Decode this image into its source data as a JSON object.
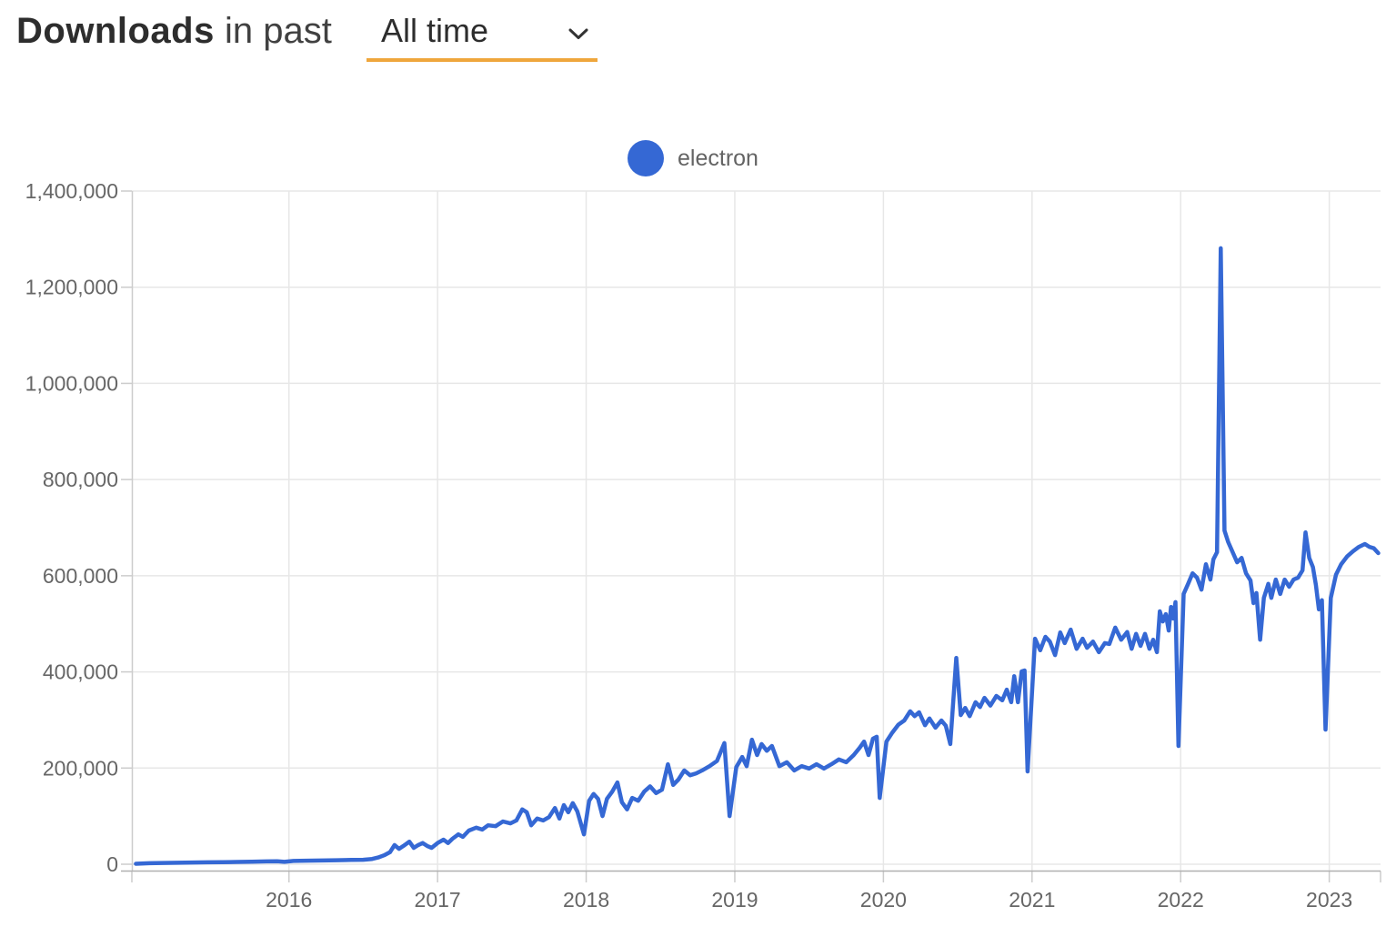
{
  "header": {
    "title_bold": "Downloads",
    "title_rest": "in past",
    "range_select": {
      "value": "All time",
      "icon": "chevron-down-icon"
    }
  },
  "legend": {
    "items": [
      {
        "label": "electron",
        "color": "#3568d4"
      }
    ]
  },
  "colors": {
    "accent_underline": "#efa63c",
    "series_blue": "#3568d4",
    "gridline": "#e7e7e7",
    "axis_line": "#b0b0b0",
    "tick": "#cccccc",
    "axis_label": "#666666"
  },
  "chart_data": {
    "type": "line",
    "title": "Downloads in past All time",
    "xlabel": "",
    "ylabel": "",
    "grid": true,
    "legend_position": "top-center",
    "x_axis": {
      "domain": [
        2014.943,
        2023.345
      ],
      "ticks": [
        2016,
        2017,
        2018,
        2019,
        2020,
        2021,
        2022,
        2023
      ],
      "tick_labels": [
        "2016",
        "2017",
        "2018",
        "2019",
        "2020",
        "2021",
        "2022",
        "2023"
      ]
    },
    "y_axis": {
      "domain": [
        0,
        1400000
      ],
      "ticks": [
        0,
        200000,
        400000,
        600000,
        800000,
        1000000,
        1200000,
        1400000
      ],
      "tick_labels": [
        "0",
        "200,000",
        "400,000",
        "600,000",
        "800,000",
        "1,000,000",
        "1,200,000",
        "1,400,000"
      ]
    },
    "series": [
      {
        "name": "electron",
        "color": "#3568d4",
        "points": [
          [
            2014.97,
            1000
          ],
          [
            2015.06,
            2000
          ],
          [
            2015.15,
            2600
          ],
          [
            2015.25,
            3100
          ],
          [
            2015.35,
            3500
          ],
          [
            2015.45,
            3900
          ],
          [
            2015.55,
            4300
          ],
          [
            2015.65,
            4800
          ],
          [
            2015.75,
            5200
          ],
          [
            2015.85,
            5800
          ],
          [
            2015.92,
            6200
          ],
          [
            2015.97,
            5000
          ],
          [
            2016.03,
            6800
          ],
          [
            2016.12,
            7300
          ],
          [
            2016.22,
            7800
          ],
          [
            2016.32,
            8300
          ],
          [
            2016.42,
            8800
          ],
          [
            2016.5,
            9300
          ],
          [
            2016.56,
            11000
          ],
          [
            2016.6,
            14000
          ],
          [
            2016.64,
            18500
          ],
          [
            2016.68,
            25000
          ],
          [
            2016.71,
            40000
          ],
          [
            2016.74,
            32000
          ],
          [
            2016.77,
            38000
          ],
          [
            2016.81,
            47000
          ],
          [
            2016.84,
            34000
          ],
          [
            2016.87,
            40000
          ],
          [
            2016.9,
            44000
          ],
          [
            2016.93,
            38000
          ],
          [
            2016.96,
            34000
          ],
          [
            2017.0,
            44000
          ],
          [
            2017.04,
            51000
          ],
          [
            2017.07,
            44000
          ],
          [
            2017.1,
            53000
          ],
          [
            2017.14,
            62000
          ],
          [
            2017.17,
            57000
          ],
          [
            2017.21,
            70000
          ],
          [
            2017.26,
            76000
          ],
          [
            2017.3,
            72000
          ],
          [
            2017.34,
            81000
          ],
          [
            2017.39,
            79000
          ],
          [
            2017.44,
            89000
          ],
          [
            2017.49,
            85000
          ],
          [
            2017.53,
            91000
          ],
          [
            2017.57,
            114000
          ],
          [
            2017.6,
            108000
          ],
          [
            2017.63,
            81000
          ],
          [
            2017.67,
            95000
          ],
          [
            2017.71,
            91000
          ],
          [
            2017.75,
            98000
          ],
          [
            2017.79,
            117000
          ],
          [
            2017.82,
            95000
          ],
          [
            2017.85,
            123000
          ],
          [
            2017.88,
            108000
          ],
          [
            2017.91,
            127000
          ],
          [
            2017.94,
            110000
          ],
          [
            2017.985,
            62000
          ],
          [
            2018.02,
            132000
          ],
          [
            2018.05,
            146000
          ],
          [
            2018.08,
            136000
          ],
          [
            2018.11,
            100000
          ],
          [
            2018.14,
            136000
          ],
          [
            2018.175,
            151000
          ],
          [
            2018.21,
            170000
          ],
          [
            2018.24,
            129000
          ],
          [
            2018.275,
            114000
          ],
          [
            2018.31,
            138000
          ],
          [
            2018.35,
            132000
          ],
          [
            2018.39,
            151000
          ],
          [
            2018.43,
            162000
          ],
          [
            2018.47,
            148000
          ],
          [
            2018.51,
            155000
          ],
          [
            2018.55,
            208000
          ],
          [
            2018.585,
            165000
          ],
          [
            2018.62,
            176000
          ],
          [
            2018.66,
            195000
          ],
          [
            2018.7,
            185000
          ],
          [
            2018.74,
            189000
          ],
          [
            2018.78,
            195000
          ],
          [
            2018.83,
            204000
          ],
          [
            2018.88,
            215000
          ],
          [
            2018.93,
            252000
          ],
          [
            2018.965,
            100000
          ],
          [
            2019.01,
            202000
          ],
          [
            2019.05,
            223000
          ],
          [
            2019.08,
            204000
          ],
          [
            2019.115,
            259000
          ],
          [
            2019.15,
            227000
          ],
          [
            2019.18,
            250000
          ],
          [
            2019.215,
            236000
          ],
          [
            2019.25,
            246000
          ],
          [
            2019.3,
            204000
          ],
          [
            2019.35,
            212000
          ],
          [
            2019.4,
            195000
          ],
          [
            2019.45,
            204000
          ],
          [
            2019.5,
            199000
          ],
          [
            2019.55,
            208000
          ],
          [
            2019.6,
            199000
          ],
          [
            2019.65,
            208000
          ],
          [
            2019.7,
            218000
          ],
          [
            2019.75,
            212000
          ],
          [
            2019.8,
            227000
          ],
          [
            2019.84,
            242000
          ],
          [
            2019.87,
            255000
          ],
          [
            2019.9,
            227000
          ],
          [
            2019.93,
            261000
          ],
          [
            2019.955,
            265000
          ],
          [
            2019.975,
            138000
          ],
          [
            2020.02,
            255000
          ],
          [
            2020.06,
            274000
          ],
          [
            2020.1,
            290000
          ],
          [
            2020.14,
            299000
          ],
          [
            2020.18,
            318000
          ],
          [
            2020.21,
            308000
          ],
          [
            2020.24,
            316000
          ],
          [
            2020.28,
            289000
          ],
          [
            2020.31,
            303000
          ],
          [
            2020.35,
            284000
          ],
          [
            2020.39,
            299000
          ],
          [
            2020.42,
            288000
          ],
          [
            2020.45,
            250000
          ],
          [
            2020.49,
            429000
          ],
          [
            2020.52,
            310000
          ],
          [
            2020.55,
            325000
          ],
          [
            2020.58,
            308000
          ],
          [
            2020.62,
            337000
          ],
          [
            2020.65,
            327000
          ],
          [
            2020.68,
            346000
          ],
          [
            2020.72,
            330000
          ],
          [
            2020.76,
            350000
          ],
          [
            2020.8,
            341000
          ],
          [
            2020.83,
            363000
          ],
          [
            2020.86,
            337000
          ],
          [
            2020.88,
            391000
          ],
          [
            2020.905,
            337000
          ],
          [
            2020.93,
            401000
          ],
          [
            2020.95,
            403000
          ],
          [
            2020.97,
            193000
          ],
          [
            2021.02,
            469000
          ],
          [
            2021.055,
            445000
          ],
          [
            2021.09,
            473000
          ],
          [
            2021.12,
            463000
          ],
          [
            2021.155,
            435000
          ],
          [
            2021.19,
            482000
          ],
          [
            2021.22,
            460000
          ],
          [
            2021.26,
            488000
          ],
          [
            2021.3,
            448000
          ],
          [
            2021.34,
            469000
          ],
          [
            2021.37,
            450000
          ],
          [
            2021.41,
            463000
          ],
          [
            2021.45,
            441000
          ],
          [
            2021.49,
            460000
          ],
          [
            2021.52,
            458000
          ],
          [
            2021.56,
            492000
          ],
          [
            2021.6,
            467000
          ],
          [
            2021.64,
            483000
          ],
          [
            2021.67,
            448000
          ],
          [
            2021.7,
            479000
          ],
          [
            2021.73,
            454000
          ],
          [
            2021.76,
            479000
          ],
          [
            2021.79,
            448000
          ],
          [
            2021.815,
            467000
          ],
          [
            2021.84,
            441000
          ],
          [
            2021.86,
            526000
          ],
          [
            2021.88,
            505000
          ],
          [
            2021.9,
            520000
          ],
          [
            2021.92,
            486000
          ],
          [
            2021.935,
            535000
          ],
          [
            2021.95,
            511000
          ],
          [
            2021.965,
            545000
          ],
          [
            2021.985,
            246000
          ],
          [
            2022.02,
            562000
          ],
          [
            2022.05,
            583000
          ],
          [
            2022.08,
            605000
          ],
          [
            2022.11,
            596000
          ],
          [
            2022.14,
            571000
          ],
          [
            2022.17,
            624000
          ],
          [
            2022.2,
            592000
          ],
          [
            2022.22,
            634000
          ],
          [
            2022.245,
            649000
          ],
          [
            2022.27,
            1281000
          ],
          [
            2022.295,
            694000
          ],
          [
            2022.32,
            670000
          ],
          [
            2022.35,
            649000
          ],
          [
            2022.38,
            628000
          ],
          [
            2022.41,
            637000
          ],
          [
            2022.44,
            605000
          ],
          [
            2022.47,
            590000
          ],
          [
            2022.49,
            543000
          ],
          [
            2022.51,
            564000
          ],
          [
            2022.535,
            467000
          ],
          [
            2022.56,
            554000
          ],
          [
            2022.59,
            583000
          ],
          [
            2022.61,
            554000
          ],
          [
            2022.64,
            592000
          ],
          [
            2022.67,
            562000
          ],
          [
            2022.7,
            592000
          ],
          [
            2022.73,
            577000
          ],
          [
            2022.76,
            592000
          ],
          [
            2022.79,
            596000
          ],
          [
            2022.82,
            611000
          ],
          [
            2022.84,
            690000
          ],
          [
            2022.865,
            637000
          ],
          [
            2022.89,
            618000
          ],
          [
            2022.91,
            581000
          ],
          [
            2022.93,
            530000
          ],
          [
            2022.95,
            549000
          ],
          [
            2022.975,
            280000
          ],
          [
            2023.01,
            554000
          ],
          [
            2023.045,
            602000
          ],
          [
            2023.08,
            624000
          ],
          [
            2023.12,
            640000
          ],
          [
            2023.16,
            651000
          ],
          [
            2023.2,
            660000
          ],
          [
            2023.24,
            666000
          ],
          [
            2023.27,
            660000
          ],
          [
            2023.3,
            657000
          ],
          [
            2023.33,
            647000
          ]
        ]
      }
    ]
  }
}
